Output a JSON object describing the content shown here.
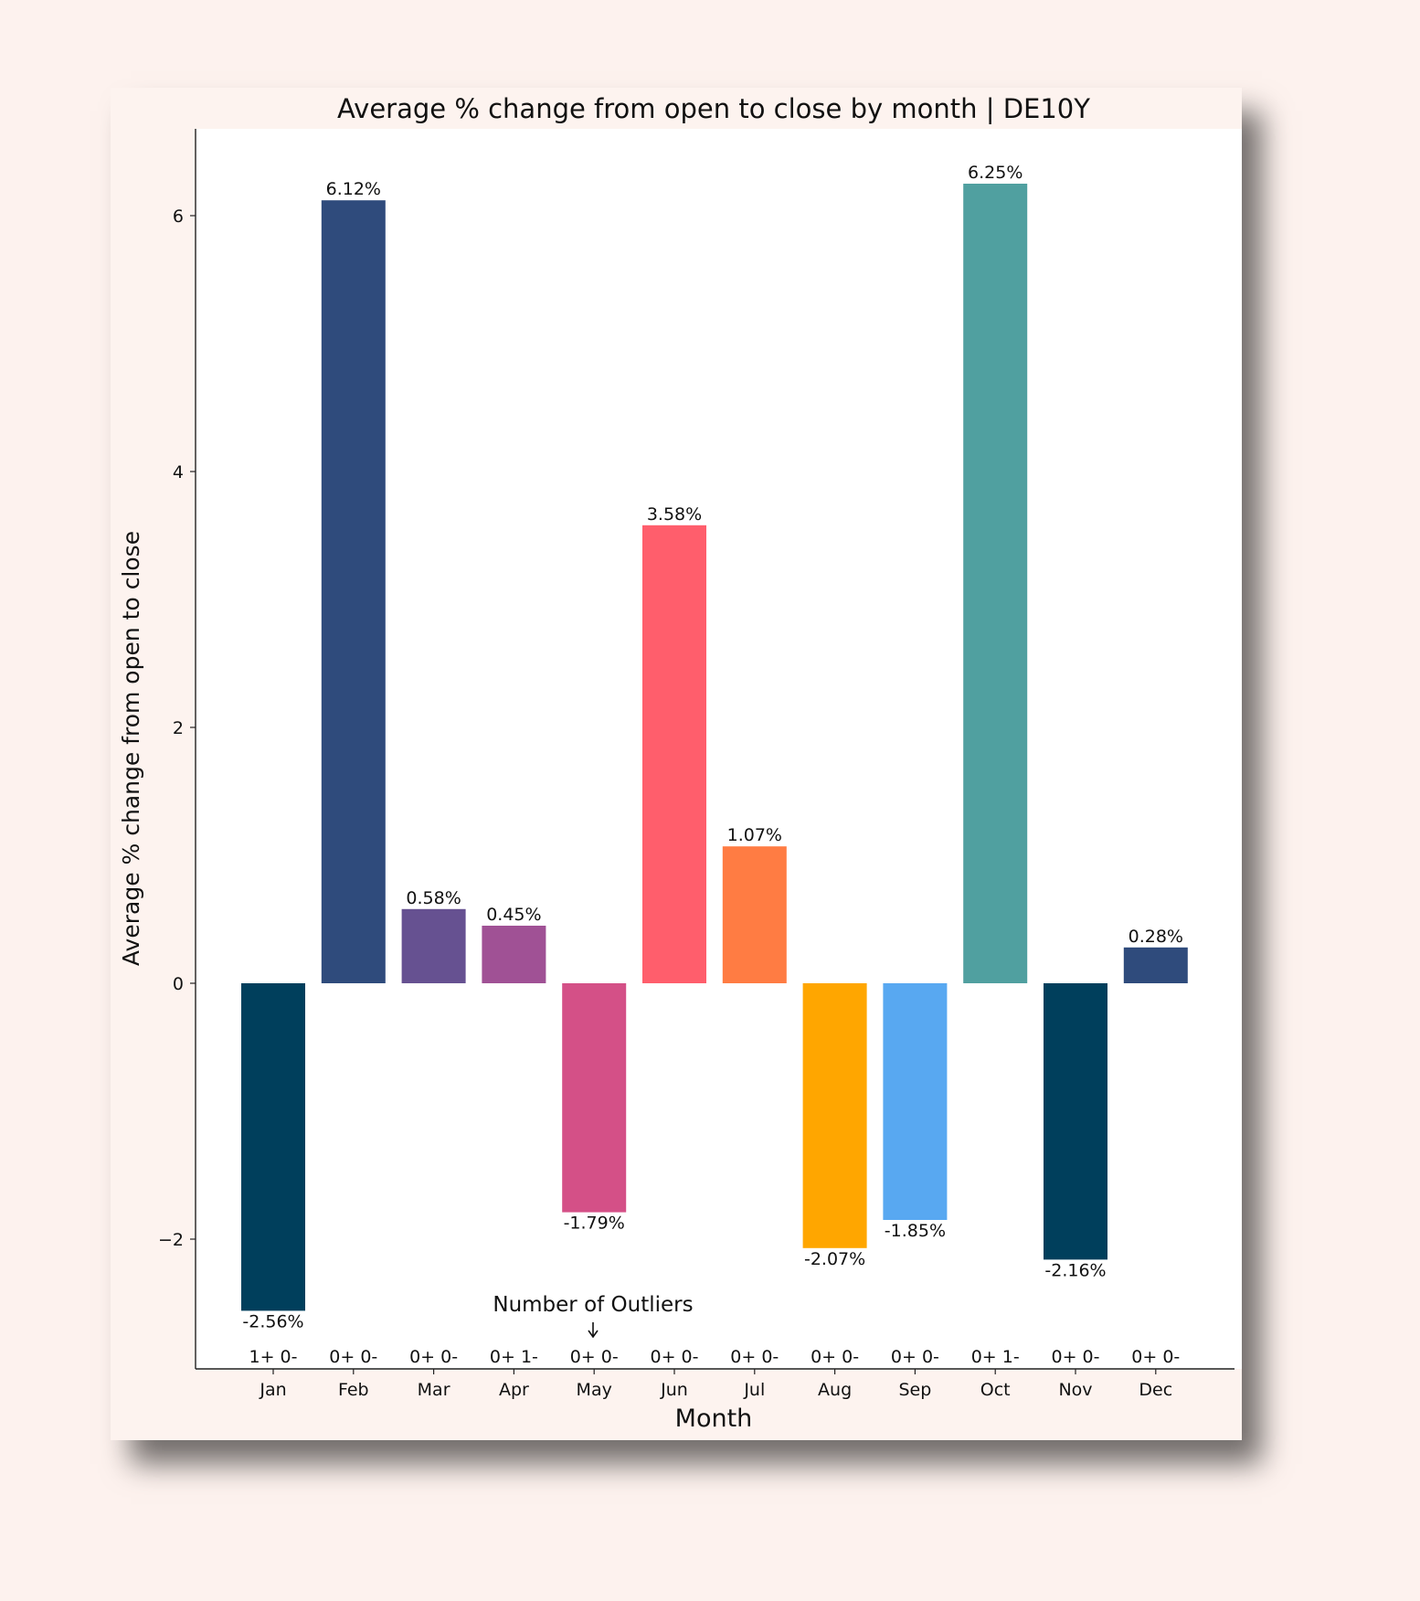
{
  "chart_data": {
    "type": "bar",
    "title": "Average % change from open to close by month | DE10Y",
    "xlabel": "Month",
    "ylabel": "Average % change from open to close",
    "ylim": [
      -3.0,
      6.7
    ],
    "yticks": [
      -2,
      0,
      2,
      4,
      6
    ],
    "grid": false,
    "categories": [
      "Jan",
      "Feb",
      "Mar",
      "Apr",
      "May",
      "Jun",
      "Jul",
      "Aug",
      "Sep",
      "Oct",
      "Nov",
      "Dec"
    ],
    "values": [
      -2.56,
      6.12,
      0.58,
      0.45,
      -1.79,
      3.58,
      1.07,
      -2.07,
      -1.85,
      6.25,
      -2.16,
      0.28
    ],
    "value_labels": [
      "-2.56%",
      "6.12%",
      "0.58%",
      "0.45%",
      "-1.79%",
      "3.58%",
      "1.07%",
      "-2.07%",
      "-1.85%",
      "6.25%",
      "-2.16%",
      "0.28%"
    ],
    "colors": [
      "#003f5c",
      "#2f4b7c",
      "#665191",
      "#a05195",
      "#d45087",
      "#ff5e6c",
      "#ff7c43",
      "#ffa600",
      "#58a8f1",
      "#50a0a0",
      "#003f5c",
      "#2f4b7c"
    ],
    "outliers_label": "Number of Outliers",
    "outliers": [
      "1+ 0-",
      "0+ 0-",
      "0+ 0-",
      "0+ 1-",
      "0+ 0-",
      "0+ 0-",
      "0+ 0-",
      "0+ 0-",
      "0+ 0-",
      "0+ 1-",
      "0+ 0-",
      "0+ 0-"
    ]
  }
}
